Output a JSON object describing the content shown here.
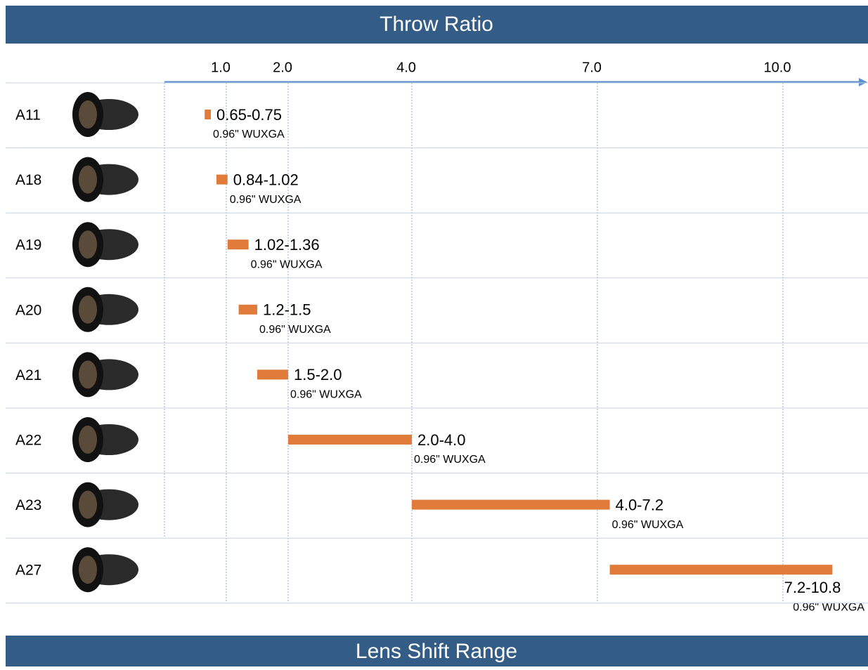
{
  "header": {
    "title": "Throw Ratio"
  },
  "chart_data": {
    "type": "range-bar",
    "categories": [
      "A11",
      "A18",
      "A19",
      "A20",
      "A21",
      "A22",
      "A23",
      "A27"
    ],
    "low": [
      0.65,
      0.84,
      1.02,
      1.2,
      1.5,
      2.0,
      4.0,
      7.2
    ],
    "high": [
      0.75,
      1.02,
      1.36,
      1.5,
      2.0,
      4.0,
      7.2,
      10.8
    ],
    "value_labels": [
      "0.65-0.75",
      "0.84-1.02",
      "1.02-1.36",
      "1.2-1.5",
      "1.5-2.0",
      "2.0-4.0",
      "4.0-7.2",
      "7.2-10.8"
    ],
    "notes": [
      "0.96\" WUXGA",
      "0.96\" WUXGA",
      "0.96\" WUXGA",
      "0.96\" WUXGA",
      "0.96\" WUXGA",
      "0.96\" WUXGA",
      "0.96\" WUXGA",
      "0.96\" WUXGA"
    ],
    "color": "#e07b39",
    "xlim": [
      0,
      11.3
    ],
    "xticks": [
      {
        "value": 1,
        "label": "1.0"
      },
      {
        "value": 2,
        "label": "2.0"
      },
      {
        "value": 4,
        "label": "4.0"
      },
      {
        "value": 7,
        "label": "7.0"
      },
      {
        "value": 10,
        "label": "10.0"
      }
    ],
    "grid": true
  },
  "footer": {
    "title": "Lens Shift Range"
  }
}
